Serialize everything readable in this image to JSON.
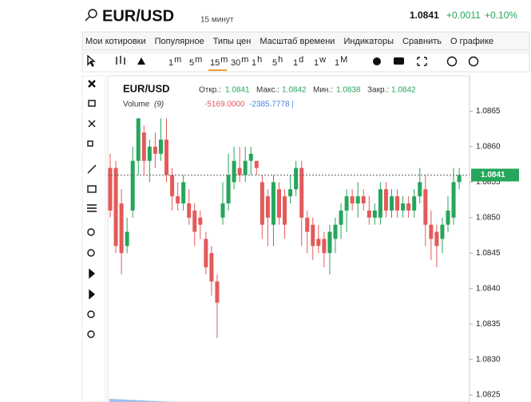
{
  "header": {
    "symbol": "EUR/USD",
    "interval": "15 минут",
    "price": "1.0841",
    "change": "+0.0011",
    "change_pct": "+0.10%"
  },
  "menu": [
    "Мои котировки",
    "Популярное",
    "Типы цен",
    "Масштаб времени",
    "Индикаторы",
    "Сравнить",
    "О графике"
  ],
  "timeframes": [
    [
      "1",
      "m"
    ],
    [
      "5",
      "m"
    ],
    [
      "15",
      "m"
    ],
    [
      "30",
      "m"
    ],
    [
      "1",
      "h"
    ],
    [
      "5",
      "h"
    ],
    [
      "1",
      "d"
    ],
    [
      "1",
      "w"
    ],
    [
      "1",
      "M"
    ]
  ],
  "legend": {
    "symbol": "EUR/USD",
    "open_label": "Откр.:",
    "open": "1.0841",
    "high_label": "Макс.:",
    "high": "1.0842",
    "low_label": "Мин.:",
    "low": "1.0838",
    "close_label": "Закр.:",
    "close": "1.0842",
    "volume_label": "Volume",
    "volume_param": "(9)",
    "volume_a": "-5169.0000",
    "volume_b": "-2385.7778",
    "cursor": "|"
  },
  "chart_data": {
    "type": "candlestick",
    "up_color": "#26a65b",
    "down_color": "#e45a5a",
    "open": [
      1.0857,
      1.0857,
      1.0852,
      1.0846,
      1.0851,
      1.0858,
      1.0862,
      1.0858,
      1.086,
      1.0859,
      1.0861,
      1.0856,
      1.0853,
      1.0852,
      1.0852,
      1.0851,
      1.085,
      1.0847,
      1.0845,
      1.0841,
      1.085,
      1.0852,
      1.0855,
      1.0857,
      1.0856,
      1.0858,
      1.0858,
      1.0855,
      1.0853,
      1.0849,
      1.0854,
      1.0853,
      1.0853,
      1.0854,
      1.0857,
      1.085,
      1.0849,
      1.0847,
      1.0847,
      1.0845,
      1.0847,
      1.0849,
      1.0851,
      1.0853,
      1.0852,
      1.0853,
      1.0851,
      1.085,
      1.085,
      1.0854,
      1.0851,
      1.0853,
      1.0851,
      1.0852,
      1.0851,
      1.0853,
      1.0854,
      1.0849,
      1.0848,
      1.0847,
      1.0849,
      1.085,
      1.0855
    ],
    "high": [
      1.0859,
      1.0858,
      1.0854,
      1.085,
      1.086,
      1.0864,
      1.0863,
      1.0861,
      1.0862,
      1.0864,
      1.0864,
      1.0857,
      1.0855,
      1.0856,
      1.0854,
      1.0852,
      1.0851,
      1.0848,
      1.0846,
      1.0842,
      1.0855,
      1.0859,
      1.086,
      1.086,
      1.086,
      1.086,
      1.0858,
      1.0856,
      1.0854,
      1.0856,
      1.0855,
      1.0854,
      1.0856,
      1.0858,
      1.0858,
      1.0851,
      1.085,
      1.0849,
      1.0848,
      1.0849,
      1.085,
      1.0852,
      1.0854,
      1.0854,
      1.0855,
      1.0854,
      1.0853,
      1.0852,
      1.0855,
      1.0855,
      1.0854,
      1.0854,
      1.0853,
      1.0853,
      1.0854,
      1.0857,
      1.0856,
      1.0851,
      1.0849,
      1.085,
      1.0853,
      1.0857,
      1.0857
    ],
    "low": [
      1.085,
      1.0845,
      1.0842,
      1.0845,
      1.085,
      1.0856,
      1.0856,
      1.0855,
      1.0857,
      1.0858,
      1.0855,
      1.0851,
      1.0851,
      1.0851,
      1.0849,
      1.0846,
      1.0847,
      1.0842,
      1.0839,
      1.0833,
      1.0849,
      1.0851,
      1.0854,
      1.0855,
      1.0855,
      1.0856,
      1.0856,
      1.0847,
      1.0846,
      1.0846,
      1.0849,
      1.0847,
      1.0852,
      1.0853,
      1.0846,
      1.0845,
      1.0844,
      1.0845,
      1.0843,
      1.0842,
      1.0845,
      1.0847,
      1.0848,
      1.0851,
      1.085,
      1.0851,
      1.0849,
      1.0849,
      1.0849,
      1.085,
      1.085,
      1.085,
      1.085,
      1.085,
      1.085,
      1.0852,
      1.0846,
      1.0844,
      1.0843,
      1.0845,
      1.0848,
      1.0849,
      1.0854
    ],
    "close": [
      1.0851,
      1.0846,
      1.0845,
      1.0848,
      1.0858,
      1.0864,
      1.0858,
      1.086,
      1.0859,
      1.0861,
      1.0856,
      1.0853,
      1.0852,
      1.0855,
      1.085,
      1.0848,
      1.0849,
      1.0843,
      1.0841,
      1.0838,
      1.0852,
      1.0856,
      1.0858,
      1.0856,
      1.0858,
      1.0859,
      1.0857,
      1.0849,
      1.085,
      1.0855,
      1.085,
      1.0849,
      1.0854,
      1.0857,
      1.085,
      1.0848,
      1.0846,
      1.0846,
      1.0845,
      1.0848,
      1.0849,
      1.0851,
      1.0853,
      1.0852,
      1.0853,
      1.0852,
      1.085,
      1.0851,
      1.0854,
      1.0851,
      1.0853,
      1.0851,
      1.0852,
      1.0851,
      1.0853,
      1.0855,
      1.0849,
      1.0847,
      1.0846,
      1.0849,
      1.0851,
      1.0855,
      1.0856
    ],
    "ylim": [
      1.0824,
      1.087
    ],
    "yticks": [
      1.0865,
      {
        "value": 1.086,
        "label": "1.0860"
      },
      1.0855,
      {
        "value": 1.085,
        "label": "1.0850"
      },
      1.0845,
      {
        "value": 1.084,
        "label": "1.0840"
      },
      1.0835,
      {
        "value": 1.083,
        "label": "1.0830"
      },
      1.0825
    ]
  }
}
